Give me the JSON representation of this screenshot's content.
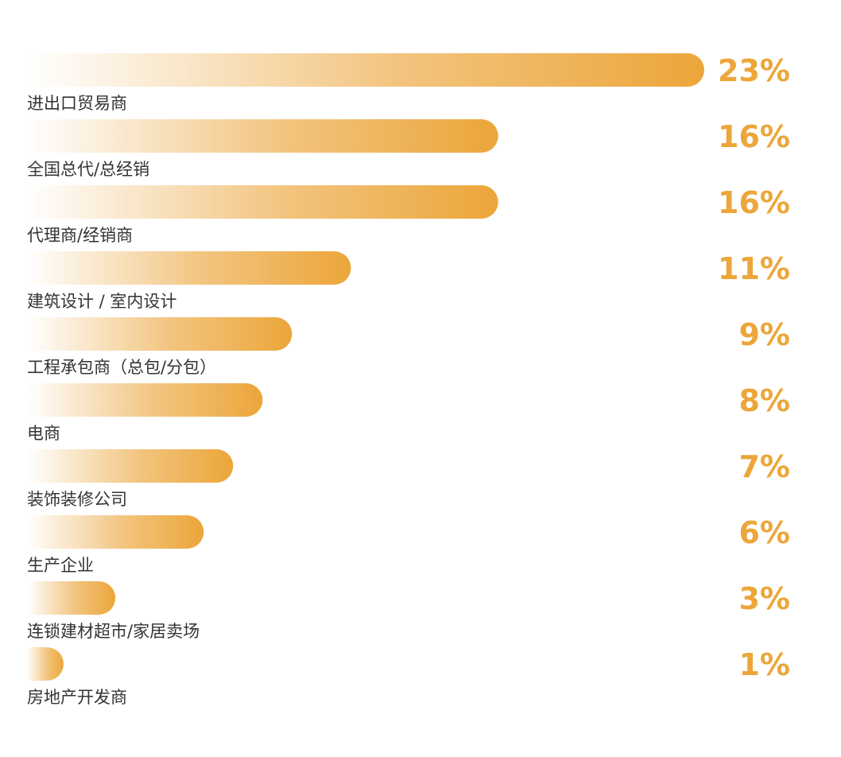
{
  "chart_data": {
    "type": "bar",
    "orientation": "horizontal",
    "categories": [
      "进出口贸易商",
      "全国总代/总经销",
      "代理商/经销商",
      "建筑设计 / 室内设计",
      "工程承包商（总包/分包）",
      "电商",
      "装饰装修公司",
      "生产企业",
      "连锁建材超市/家居卖场",
      "房地产开发商"
    ],
    "values": [
      23,
      16,
      16,
      11,
      9,
      8,
      7,
      6,
      3,
      1
    ],
    "value_labels": [
      "23%",
      "16%",
      "16%",
      "11%",
      "9%",
      "8%",
      "7%",
      "6%",
      "3%",
      "1%"
    ],
    "unit": "%",
    "title": "",
    "xlabel": "",
    "ylabel": "",
    "grid": false,
    "colors": {
      "bar_start": "#FFFFFF",
      "bar_end": "#ECA63A",
      "value_text": "#ECA63A",
      "label_text": "#333333"
    }
  }
}
